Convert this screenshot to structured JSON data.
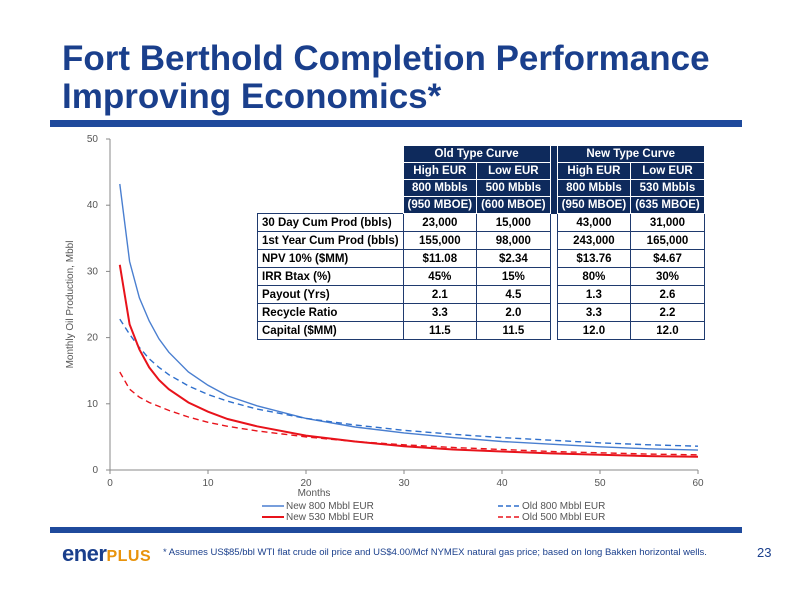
{
  "slide": {
    "title_line1": "Fort Berthold Completion Performance",
    "title_line2": "Improving Economics*",
    "footnote": "* Assumes US$85/bbl WTI flat crude oil price and US$4.00/Mcf NYMEX natural gas price; based on long Bakken horizontal wells.",
    "page_number": "23",
    "logo_text_main": "ener",
    "logo_text_accent": "PLUS"
  },
  "colors": {
    "brand_blue": "#1a3f8c",
    "new_800": "#4a7fd0",
    "old_800": "#2e6fcc",
    "new_530": "#e8131b",
    "old_500": "#e8131b",
    "table_header": "#0e2a5c"
  },
  "table": {
    "group_old": "Old Type Curve",
    "group_new": "New Type Curve",
    "col_headers": [
      [
        "High EUR",
        "800 Mbbls",
        "(950 MBOE)"
      ],
      [
        "Low EUR",
        "500 Mbbls",
        "(600 MBOE)"
      ],
      [
        "High EUR",
        "800 Mbbls",
        "(950 MBOE)"
      ],
      [
        "Low EUR",
        "530 Mbbls",
        "(635 MBOE)"
      ]
    ],
    "rows": [
      {
        "label": "30 Day Cum Prod (bbls)",
        "values": [
          "23,000",
          "15,000",
          "43,000",
          "31,000"
        ]
      },
      {
        "label": "1st Year Cum Prod (bbls)",
        "values": [
          "155,000",
          "98,000",
          "243,000",
          "165,000"
        ]
      },
      {
        "label": "NPV 10%  ($MM)",
        "values": [
          "$11.08",
          "$2.34",
          "$13.76",
          "$4.67"
        ]
      },
      {
        "label": "IRR  Btax  (%)",
        "values": [
          "45%",
          "15%",
          "80%",
          "30%"
        ]
      },
      {
        "label": "Payout (Yrs)",
        "values": [
          "2.1",
          "4.5",
          "1.3",
          "2.6"
        ]
      },
      {
        "label": "Recycle Ratio",
        "values": [
          "3.3",
          "2.0",
          "3.3",
          "2.2"
        ]
      },
      {
        "label": "Capital ($MM)",
        "values": [
          "11.5",
          "11.5",
          "12.0",
          "12.0"
        ]
      }
    ]
  },
  "chart_data": {
    "type": "line",
    "xlabel": "Months",
    "ylabel": "Monthly Oil Production, Mbbl",
    "xlim": [
      0,
      60
    ],
    "ylim": [
      0,
      50
    ],
    "xticks": [
      "0",
      "10",
      "20",
      "30",
      "40",
      "50",
      "60"
    ],
    "yticks": [
      "0",
      "10",
      "20",
      "30",
      "40",
      "50"
    ],
    "grid": false,
    "legend_position": "bottom",
    "x": [
      1,
      2,
      3,
      4,
      5,
      6,
      8,
      10,
      12,
      15,
      20,
      25,
      30,
      35,
      40,
      45,
      50,
      55,
      60
    ],
    "series": [
      {
        "name": "New 800 Mbbl EUR",
        "style": "solid",
        "color": "#4a7fd0",
        "values": [
          43.2,
          31.5,
          26.0,
          22.5,
          19.8,
          17.8,
          14.8,
          12.8,
          11.2,
          9.7,
          7.8,
          6.5,
          5.6,
          4.9,
          4.3,
          3.9,
          3.5,
          3.2,
          3.0
        ]
      },
      {
        "name": "Old 800 Mbbl EUR",
        "style": "dashed",
        "color": "#2e6fcc",
        "values": [
          22.8,
          20.5,
          18.5,
          16.8,
          15.5,
          14.4,
          12.7,
          11.4,
          10.4,
          9.2,
          7.8,
          6.8,
          6.0,
          5.4,
          4.9,
          4.5,
          4.1,
          3.8,
          3.6
        ]
      },
      {
        "name": "New 530 Mbbl EUR",
        "style": "solid",
        "color": "#e8131b",
        "values": [
          31.0,
          22.0,
          18.2,
          15.5,
          13.6,
          12.2,
          10.2,
          8.8,
          7.7,
          6.6,
          5.2,
          4.3,
          3.6,
          3.1,
          2.8,
          2.5,
          2.3,
          2.1,
          2.0
        ]
      },
      {
        "name": "Old 500 Mbbl EUR",
        "style": "dashed",
        "color": "#e8131b",
        "values": [
          14.8,
          12.2,
          11.0,
          10.2,
          9.6,
          9.0,
          8.0,
          7.2,
          6.6,
          5.9,
          5.0,
          4.3,
          3.8,
          3.4,
          3.1,
          2.8,
          2.6,
          2.4,
          2.3
        ]
      }
    ]
  }
}
